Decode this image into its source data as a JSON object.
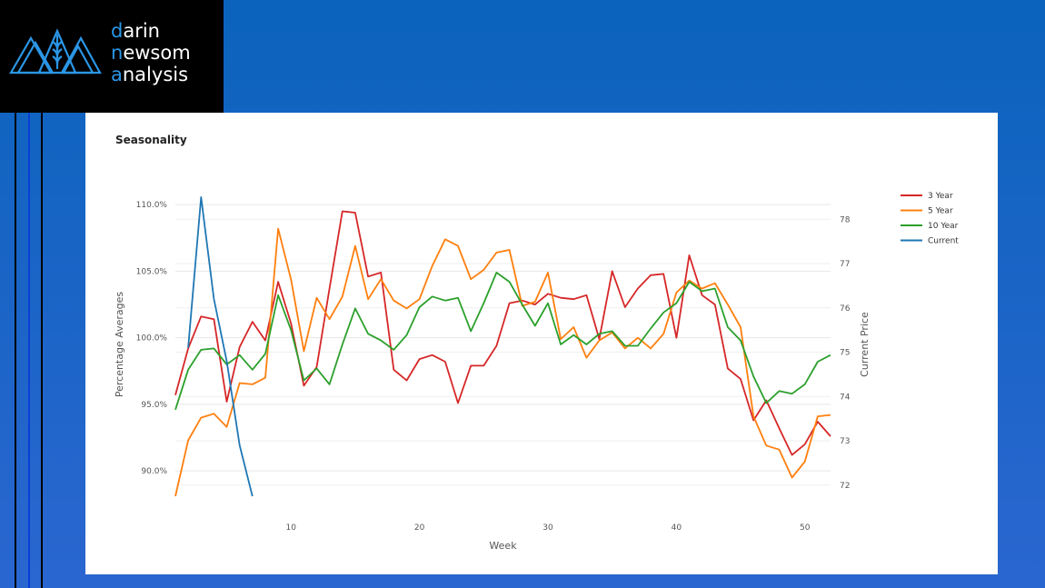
{
  "logo": {
    "lines": [
      [
        "d",
        "arin"
      ],
      [
        "n",
        "ewsom"
      ],
      [
        "a",
        "nalysis"
      ]
    ]
  },
  "card": {
    "title": "Seasonality"
  },
  "colors": {
    "3year": "#d62728",
    "5year": "#ff7f0e",
    "10year": "#2ca02c",
    "current": "#1f77b4"
  },
  "chart_data": {
    "type": "line",
    "xlabel": "Week",
    "ylabel": "Percentage Averages",
    "y2label": "Current Price",
    "x_ticks": [
      10,
      20,
      30,
      40,
      50
    ],
    "y_ticks": [
      "90.0%",
      "95.0%",
      "100.0%",
      "105.0%",
      "110.0%"
    ],
    "y_tick_values": [
      90,
      95,
      100,
      105,
      110
    ],
    "y2_ticks": [
      72,
      73,
      74,
      75,
      76,
      77,
      78
    ],
    "xlim": [
      1,
      52
    ],
    "ylim": [
      88.1,
      110.9
    ],
    "y2lim": [
      71.75,
      78.6
    ],
    "grid": true,
    "legend": "top-right",
    "series": [
      {
        "name": "3 Year",
        "axis": "y",
        "color": "#d62728",
        "x": [
          1,
          2,
          3,
          4,
          5,
          6,
          7,
          8,
          9,
          10,
          11,
          12,
          13,
          14,
          15,
          16,
          17,
          18,
          19,
          20,
          21,
          22,
          23,
          24,
          25,
          26,
          27,
          28,
          29,
          30,
          31,
          32,
          33,
          34,
          35,
          36,
          37,
          38,
          39,
          40,
          41,
          42,
          43,
          44,
          45,
          46,
          47,
          48,
          49,
          50,
          51,
          52
        ],
        "values": [
          95.7,
          99.2,
          101.6,
          101.4,
          95.2,
          99.3,
          101.2,
          99.8,
          104.2,
          101.1,
          96.4,
          97.8,
          103.7,
          109.5,
          109.4,
          104.6,
          104.9,
          97.6,
          96.8,
          98.4,
          98.7,
          98.2,
          95.1,
          97.9,
          97.9,
          99.4,
          102.6,
          102.8,
          102.5,
          103.3,
          103.0,
          102.9,
          103.2,
          99.9,
          105.0,
          102.3,
          103.7,
          104.7,
          104.8,
          100.0,
          106.2,
          103.2,
          102.5,
          97.7,
          96.9,
          93.8,
          95.3,
          93.2,
          91.2,
          92.0,
          93.7,
          92.6
        ]
      },
      {
        "name": "5 Year",
        "axis": "y",
        "color": "#ff7f0e",
        "x": [
          1,
          2,
          3,
          4,
          5,
          6,
          7,
          8,
          9,
          10,
          11,
          12,
          13,
          14,
          15,
          16,
          17,
          18,
          19,
          20,
          21,
          22,
          23,
          24,
          25,
          26,
          27,
          28,
          29,
          30,
          31,
          32,
          33,
          34,
          35,
          36,
          37,
          38,
          39,
          40,
          41,
          42,
          43,
          44,
          45,
          46,
          47,
          48,
          49,
          50,
          51,
          52
        ],
        "values": [
          88.1,
          92.3,
          94.0,
          94.3,
          93.3,
          96.6,
          96.5,
          97.0,
          108.2,
          104.4,
          99.0,
          103.0,
          101.4,
          103.1,
          106.9,
          102.9,
          104.4,
          102.8,
          102.2,
          102.9,
          105.4,
          107.4,
          106.9,
          104.4,
          105.1,
          106.4,
          106.6,
          102.4,
          102.7,
          104.9,
          99.9,
          100.8,
          98.5,
          99.8,
          100.4,
          99.2,
          100.0,
          99.2,
          100.3,
          103.4,
          104.3,
          103.7,
          104.1,
          102.5,
          100.8,
          94.1,
          91.9,
          91.6,
          89.5,
          90.7,
          94.1,
          94.2
        ]
      },
      {
        "name": "10 Year",
        "axis": "y",
        "color": "#2ca02c",
        "x": [
          1,
          2,
          3,
          4,
          5,
          6,
          7,
          8,
          9,
          10,
          11,
          12,
          13,
          14,
          15,
          16,
          17,
          18,
          19,
          20,
          21,
          22,
          23,
          24,
          25,
          26,
          27,
          28,
          29,
          30,
          31,
          32,
          33,
          34,
          35,
          36,
          37,
          38,
          39,
          40,
          41,
          42,
          43,
          44,
          45,
          46,
          47,
          48,
          49,
          50,
          51,
          52
        ],
        "values": [
          94.6,
          97.6,
          99.1,
          99.2,
          98.0,
          98.7,
          97.6,
          98.8,
          103.2,
          100.6,
          96.8,
          97.7,
          96.5,
          99.5,
          102.2,
          100.3,
          99.8,
          99.1,
          100.2,
          102.3,
          103.1,
          102.8,
          103.0,
          100.5,
          102.6,
          104.9,
          104.2,
          102.5,
          100.9,
          102.6,
          99.5,
          100.2,
          99.5,
          100.3,
          100.5,
          99.4,
          99.4,
          100.7,
          101.9,
          102.6,
          104.2,
          103.5,
          103.7,
          100.8,
          99.8,
          97.1,
          95.1,
          96.0,
          95.8,
          96.5,
          98.2,
          98.7
        ]
      },
      {
        "name": "Current",
        "axis": "y2",
        "color": "#1f77b4",
        "x": [
          2,
          3,
          4,
          5,
          6,
          7
        ],
        "values": [
          75.1,
          78.5,
          76.2,
          74.8,
          72.9,
          71.75
        ]
      }
    ]
  }
}
